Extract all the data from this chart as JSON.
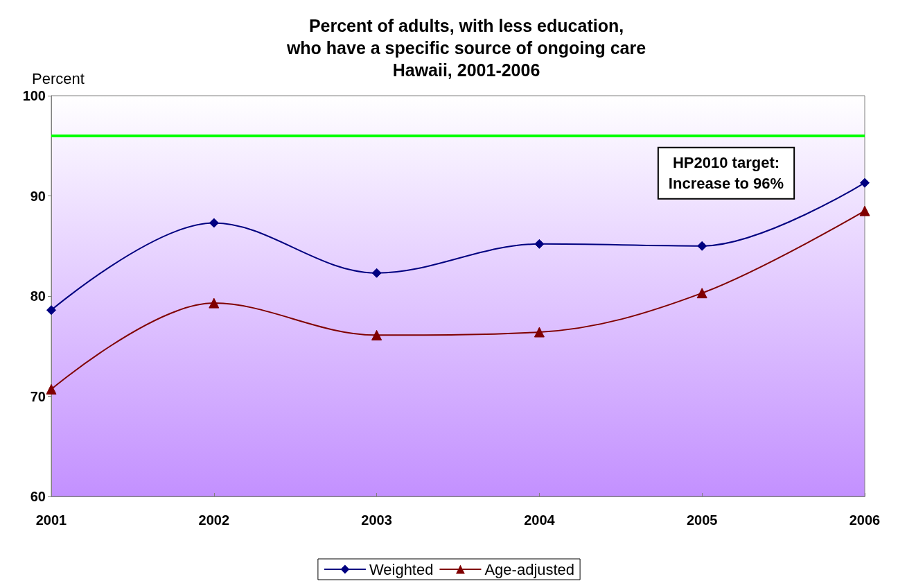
{
  "chart_data": {
    "type": "line",
    "title": "Percent of adults, with less education,\nwho have a specific source of ongoing care\nHawaii, 2001-2006",
    "ylabel": "Percent",
    "categories": [
      "2001",
      "2002",
      "2003",
      "2004",
      "2005",
      "2006"
    ],
    "series": [
      {
        "name": "Weighted",
        "color": "#000080",
        "marker": "diamond",
        "values": [
          78.6,
          87.3,
          82.3,
          85.2,
          85.0,
          91.3
        ]
      },
      {
        "name": "Age-adjusted",
        "color": "#800000",
        "marker": "triangle",
        "values": [
          70.7,
          79.3,
          76.1,
          76.4,
          80.3,
          88.5
        ]
      }
    ],
    "ylim": [
      60,
      100
    ],
    "yticks": [
      60,
      70,
      80,
      90,
      100
    ],
    "grid": false,
    "legend": "bottom",
    "ref_lines": [
      {
        "axis": "y",
        "value": 96,
        "label": "HP2010 target:\nIncrease to 96%",
        "color": "#00ff00"
      }
    ]
  }
}
